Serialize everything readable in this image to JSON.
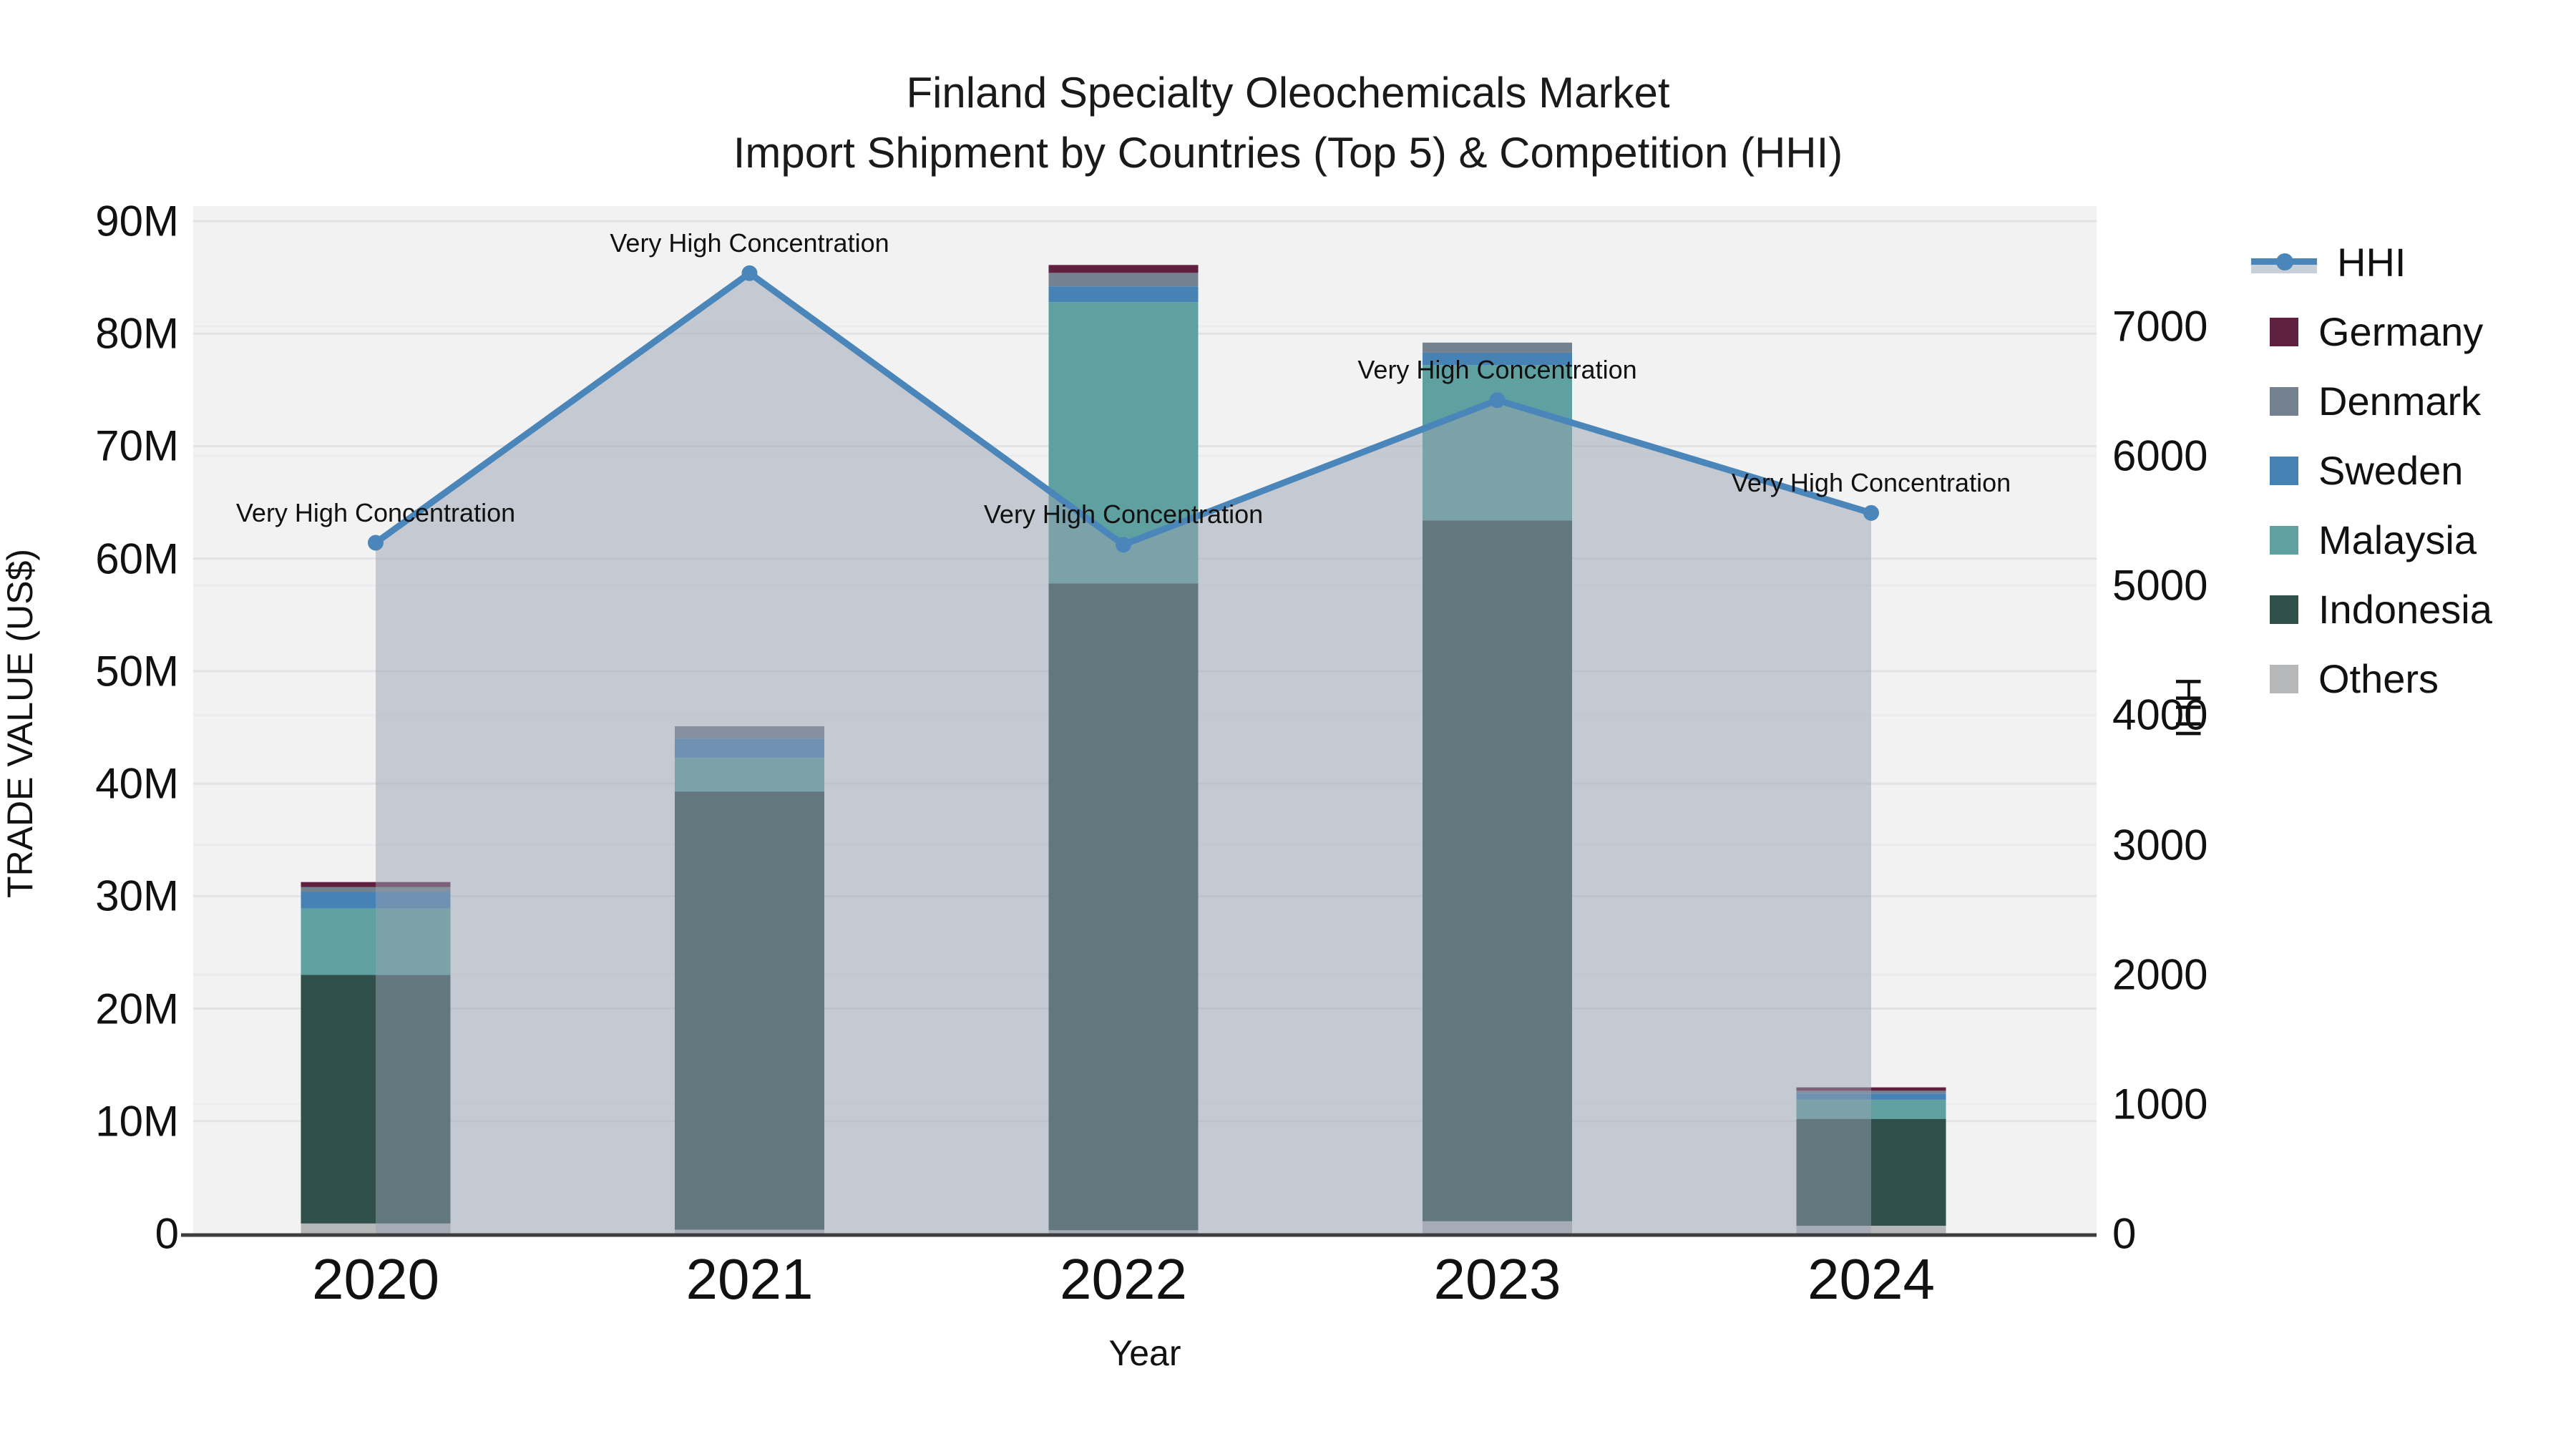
{
  "title": {
    "line1": "Finland Specialty Oleochemicals Market",
    "line2": "Import Shipment by Countries (Top 5) & Competition (HHI)"
  },
  "axes": {
    "left": {
      "title": "TRADE VALUE (US$)",
      "ticks": [
        "0",
        "10M",
        "20M",
        "30M",
        "40M",
        "50M",
        "60M",
        "70M",
        "80M",
        "90M"
      ],
      "tick_values": [
        0,
        10,
        20,
        30,
        40,
        50,
        60,
        70,
        80,
        90
      ]
    },
    "right": {
      "title": "HHI",
      "ticks": [
        "0",
        "1000",
        "2000",
        "3000",
        "4000",
        "5000",
        "6000",
        "7000"
      ],
      "tick_values": [
        0,
        1000,
        2000,
        3000,
        4000,
        5000,
        6000,
        7000
      ]
    },
    "x": {
      "title": "Year"
    }
  },
  "legend_items": [
    {
      "label": "HHI",
      "type": "line",
      "color": "#4a86ba",
      "fill": "#c9cfd8"
    },
    {
      "label": "Germany",
      "type": "box",
      "color": "#60203f"
    },
    {
      "label": "Denmark",
      "type": "box",
      "color": "#74818f"
    },
    {
      "label": "Sweden",
      "type": "box",
      "color": "#4682b4"
    },
    {
      "label": "Malaysia",
      "type": "box",
      "color": "#5fa1a1"
    },
    {
      "label": "Indonesia",
      "type": "box",
      "color": "#2f4f4b"
    },
    {
      "label": "Others",
      "type": "box",
      "color": "#b5b7b8"
    }
  ],
  "colors": {
    "plot_bg": "#f2f2f3",
    "grid_left": "#e3e3e5",
    "grid_right": "#ececee",
    "axis_line": "#3d3d3d",
    "hhi_line": "#4a86ba",
    "hhi_fill": "rgba(152,162,177,0.5)",
    "text": "#111111"
  },
  "chart_data": {
    "type": "composed_stacked_bar_plus_line",
    "categories": [
      "2020",
      "2021",
      "2022",
      "2023",
      "2024"
    ],
    "bar_unit": "M US$",
    "bar_stack_order_bottom_to_top": [
      "Others",
      "Indonesia",
      "Malaysia",
      "Sweden",
      "Denmark",
      "Germany"
    ],
    "series": [
      {
        "name": "Others",
        "color": "#b5b7b8",
        "values": [
          0.9,
          0.35,
          0.3,
          1.1,
          0.7
        ]
      },
      {
        "name": "Indonesia",
        "color": "#2f4f4b",
        "values": [
          22.1,
          38.95,
          57.5,
          62.3,
          9.5
        ]
      },
      {
        "name": "Malaysia",
        "color": "#5fa1a1",
        "values": [
          5.9,
          3.0,
          25.0,
          13.8,
          1.7
        ]
      },
      {
        "name": "Sweden",
        "color": "#4682b4",
        "values": [
          1.5,
          1.7,
          1.4,
          1.1,
          0.55
        ]
      },
      {
        "name": "Denmark",
        "color": "#74818f",
        "values": [
          0.4,
          1.1,
          1.2,
          0.9,
          0.25
        ]
      },
      {
        "name": "Germany",
        "color": "#60203f",
        "values": [
          0.45,
          0.0,
          0.7,
          0.0,
          0.3
        ]
      }
    ],
    "bar_totals_m": [
      31.25,
      45.1,
      86.1,
      79.2,
      13.0
    ],
    "line_series": {
      "name": "HHI",
      "axis": "right",
      "values": [
        5330,
        7410,
        5315,
        6430,
        5560
      ]
    },
    "annotations": [
      "Very High Concentration",
      "Very High Concentration",
      "Very High Concentration",
      "Very High Concentration",
      "Very High Concentration"
    ],
    "title": "Finland Specialty Oleochemicals Market — Import Shipment by Countries (Top 5) & Competition (HHI)",
    "xlabel": "Year",
    "ylabel_left": "TRADE VALUE (US$)",
    "ylabel_right": "HHI",
    "ylim_left_m": [
      0,
      90
    ],
    "ylim_right": [
      0,
      7000
    ],
    "grid": true,
    "legend_position": "right"
  }
}
